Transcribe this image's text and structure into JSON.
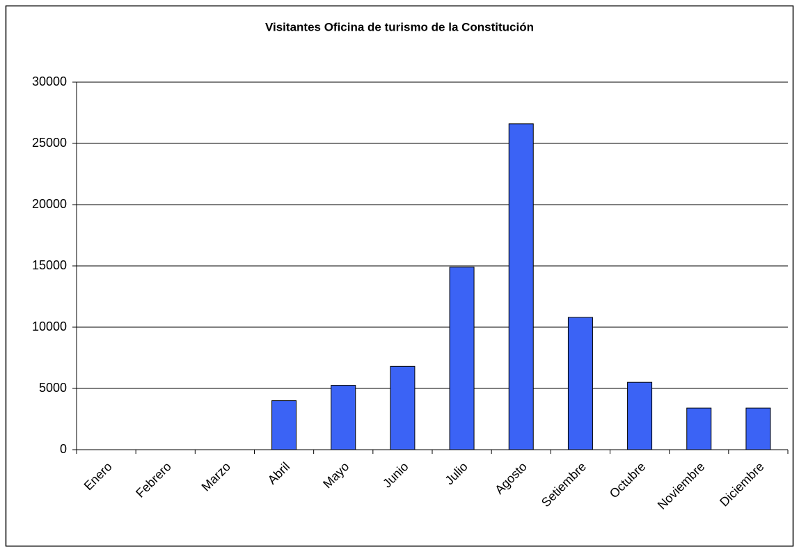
{
  "chart_data": {
    "type": "bar",
    "title": "Visitantes Oficina de turismo de la Constitución",
    "categories": [
      "Enero",
      "Febrero",
      "Marzo",
      "Abril",
      "Mayo",
      "Junio",
      "Julio",
      "Agosto",
      "Setiembre",
      "Octubre",
      "Noviembre",
      "Diciembre"
    ],
    "values": [
      0,
      0,
      0,
      4000,
      5250,
      6800,
      14900,
      26600,
      10800,
      5500,
      3400,
      3400
    ],
    "color": "#3b63f5",
    "ylim": [
      0,
      30000
    ],
    "yticks": [
      0,
      5000,
      10000,
      15000,
      20000,
      25000,
      30000
    ],
    "grid": true
  }
}
